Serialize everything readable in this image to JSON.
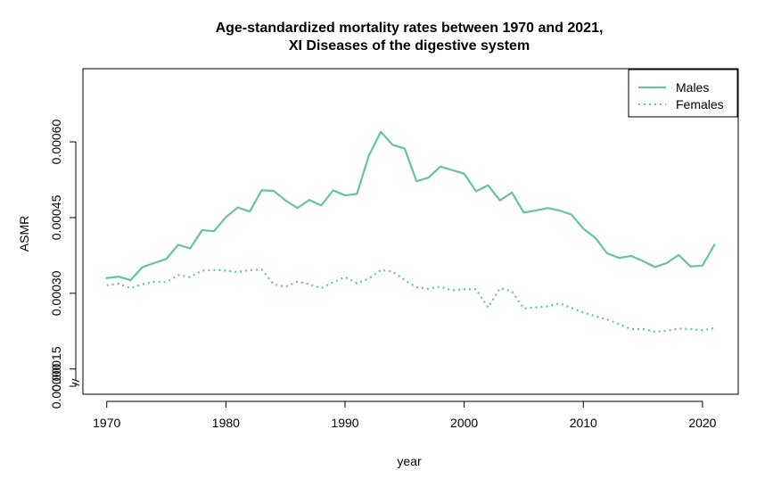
{
  "chart_data": {
    "type": "line",
    "title": "Age-standardized mortality rates between 1970 and 2021,",
    "subtitle": "XI Diseases of the digestive system",
    "xlabel": "year",
    "ylabel": "ASMR",
    "xlim": [
      1968,
      2023
    ],
    "ylim": [
      0.0001,
      0.000745
    ],
    "x_ticks": [
      1970,
      1980,
      1990,
      2000,
      2010,
      2020
    ],
    "y_ticks": [
      0.0,
      0.00015,
      0.0003,
      0.00045,
      0.0006
    ],
    "y_tick_labels": [
      "0.00000",
      "0.00015",
      "0.00030",
      "0.00045",
      "0.00060"
    ],
    "y_axis_break": true,
    "grid": false,
    "legend_position": "top-right",
    "colors": {
      "series": "#66c2a5"
    },
    "x": [
      1970,
      1971,
      1972,
      1973,
      1974,
      1975,
      1976,
      1977,
      1978,
      1979,
      1980,
      1981,
      1982,
      1983,
      1984,
      1985,
      1986,
      1987,
      1988,
      1989,
      1990,
      1991,
      1992,
      1993,
      1994,
      1995,
      1996,
      1997,
      1998,
      1999,
      2000,
      2001,
      2002,
      2003,
      2004,
      2005,
      2006,
      2007,
      2008,
      2009,
      2010,
      2011,
      2012,
      2013,
      2014,
      2015,
      2016,
      2017,
      2018,
      2019,
      2020,
      2021
    ],
    "series": [
      {
        "name": "Males",
        "line_style": "solid",
        "values": [
          0.00033,
          0.000333,
          0.000326,
          0.000352,
          0.00036,
          0.000368,
          0.000396,
          0.000389,
          0.000425,
          0.000423,
          0.000451,
          0.00047,
          0.000462,
          0.000504,
          0.000503,
          0.000484,
          0.000469,
          0.000485,
          0.000474,
          0.000504,
          0.000494,
          0.000497,
          0.000573,
          0.00062,
          0.000594,
          0.000587,
          0.000522,
          0.000529,
          0.000551,
          0.000544,
          0.000537,
          0.000502,
          0.000514,
          0.000484,
          0.0005,
          0.00046,
          0.000464,
          0.000469,
          0.000464,
          0.000456,
          0.000428,
          0.00041,
          0.000379,
          0.00037,
          0.000374,
          0.000364,
          0.000352,
          0.00036,
          0.000376,
          0.000353,
          0.000355,
          0.000396
        ]
      },
      {
        "name": "Females",
        "line_style": "dotted",
        "values": [
          0.000316,
          0.000319,
          0.00031,
          0.000318,
          0.000323,
          0.000322,
          0.000336,
          0.000332,
          0.000345,
          0.000346,
          0.000345,
          0.000342,
          0.000346,
          0.000347,
          0.000318,
          0.000313,
          0.000323,
          0.000318,
          0.00031,
          0.000322,
          0.000332,
          0.00032,
          0.000329,
          0.000346,
          0.000343,
          0.000326,
          0.000312,
          0.000309,
          0.000313,
          0.000306,
          0.000308,
          0.000308,
          0.000272,
          0.00031,
          0.000304,
          0.00027,
          0.000272,
          0.000274,
          0.00028,
          0.000271,
          0.000262,
          0.000255,
          0.000248,
          0.000239,
          0.000229,
          0.000229,
          0.000224,
          0.000226,
          0.00023,
          0.000229,
          0.000227,
          0.000231
        ]
      }
    ]
  }
}
